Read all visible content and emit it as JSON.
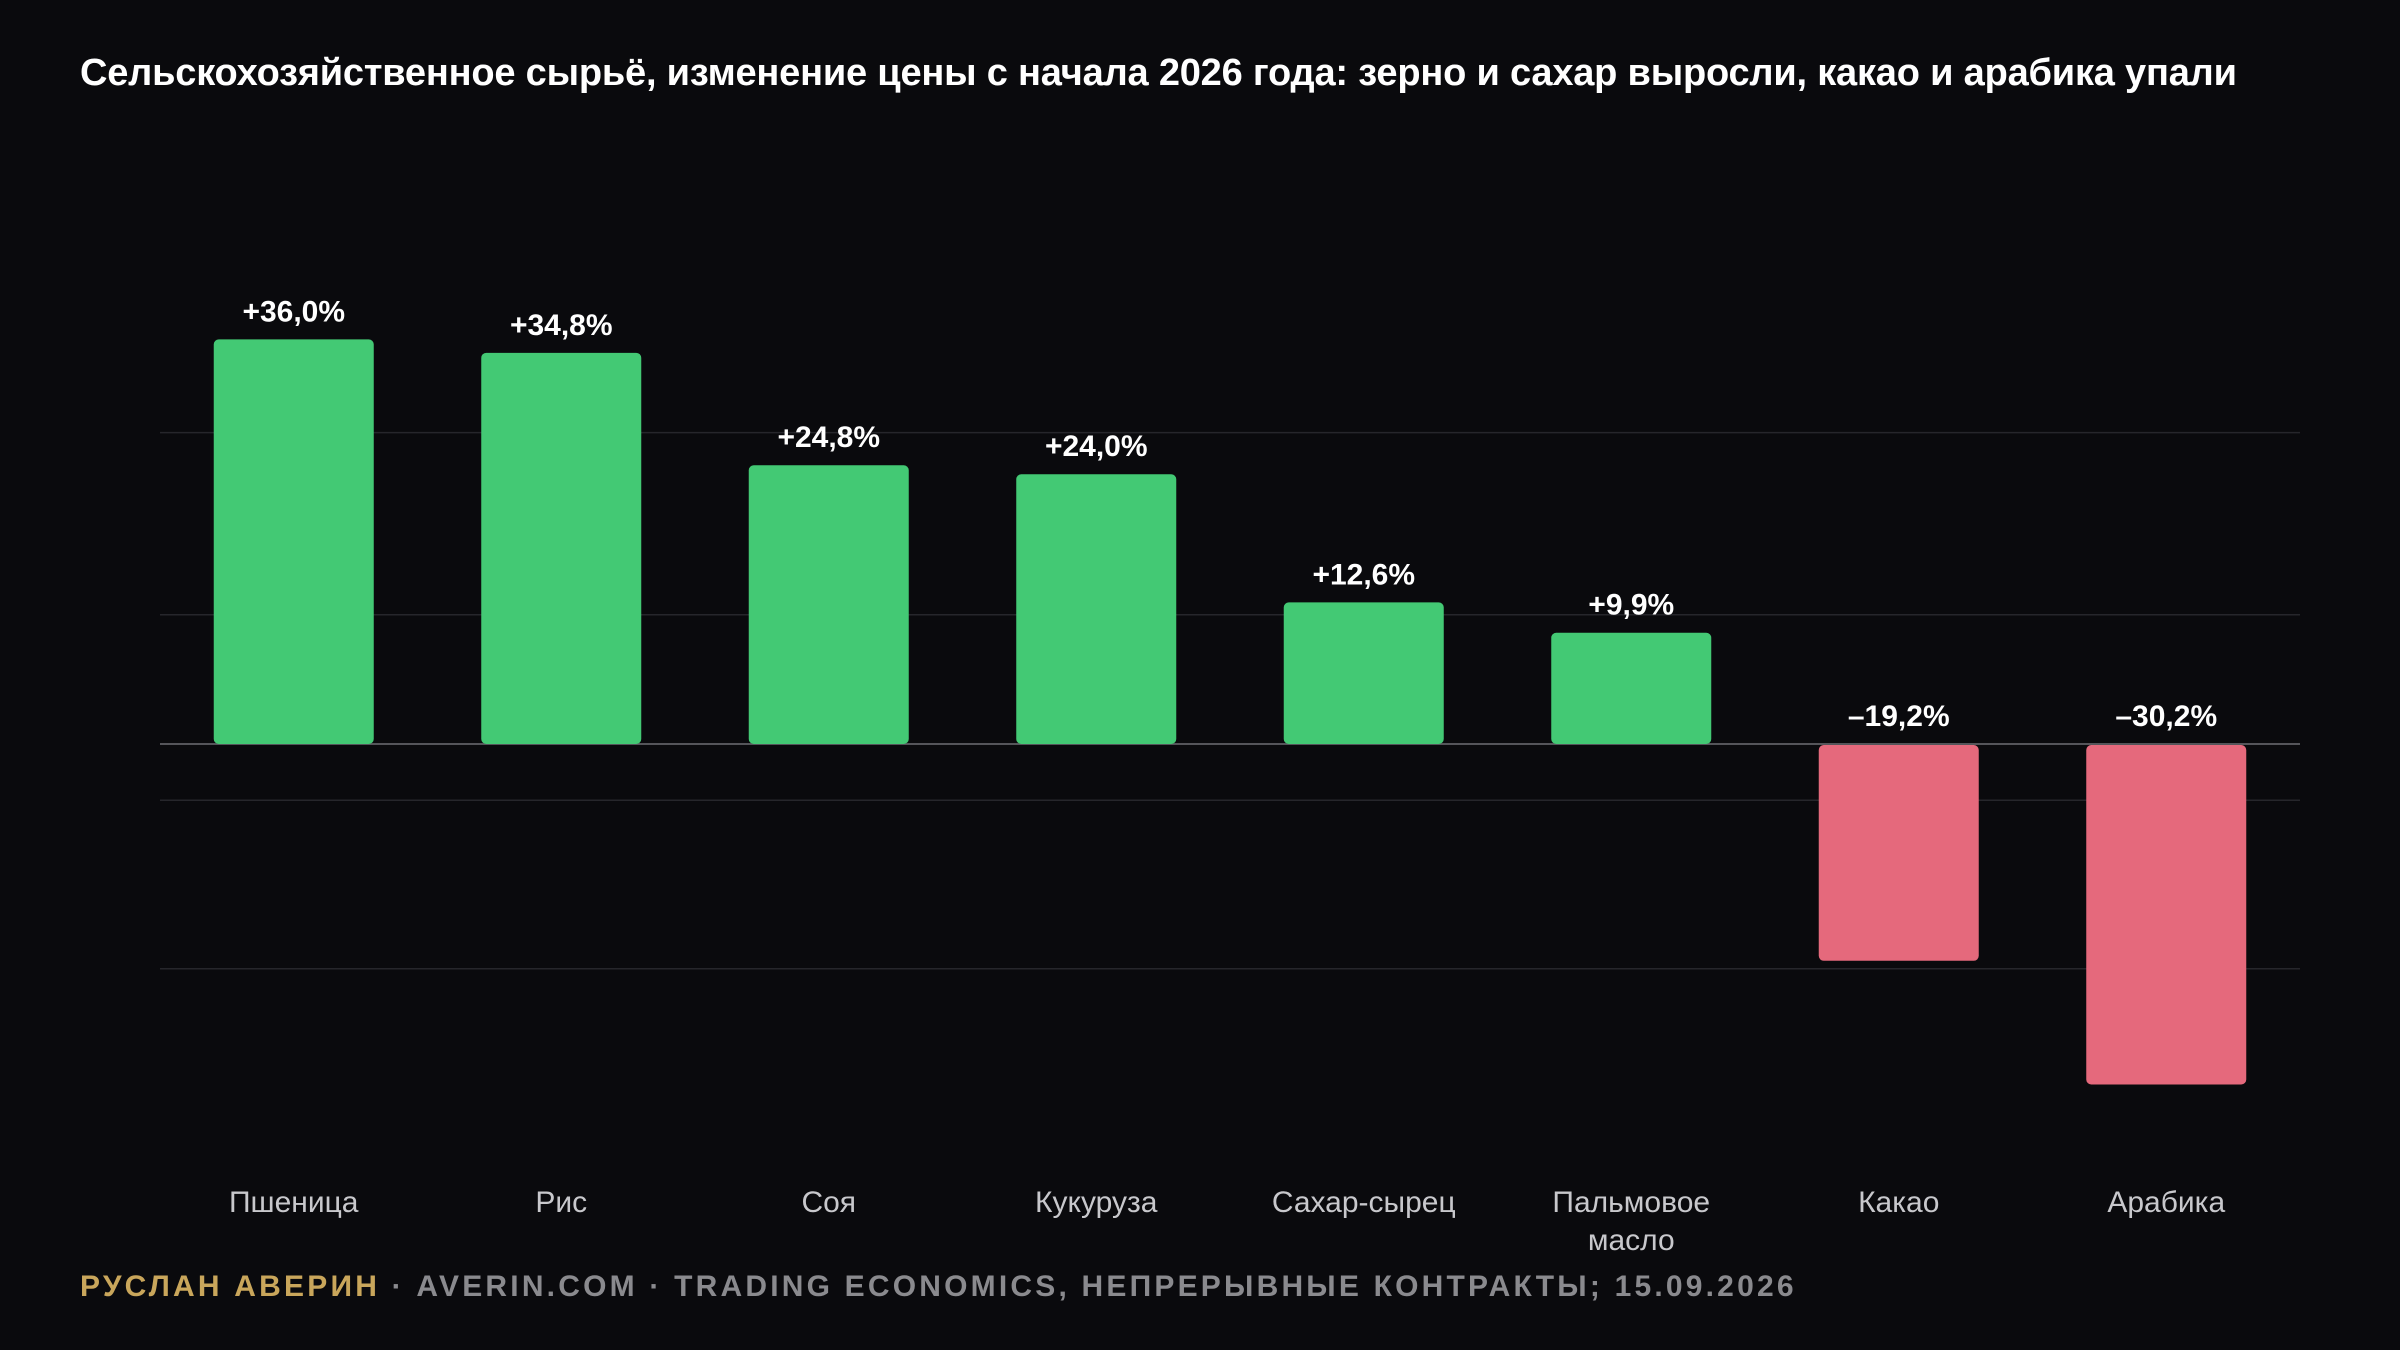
{
  "title": "Сельскохозяйственное сырьё, изменение цены с начала 2026 года: зерно и сахар выросли, какао и арабика упали",
  "footer": {
    "author": "РУСЛАН АВЕРИН",
    "separator": " · ",
    "source": "AVERIN.COM · TRADING ECONOMICS, НЕПРЕРЫВНЫЕ КОНТРАКТЫ; 15.09.2026"
  },
  "colors": {
    "positive": "#43c974",
    "negative": "#e5697c",
    "background": "#0a0a0d",
    "gridline": "#26262b",
    "zeroline": "#55555a",
    "category_label": "#c8c8cc",
    "author": "#c9a65b"
  },
  "chart_data": {
    "type": "bar",
    "categories": [
      "Пшеница",
      "Рис",
      "Соя",
      "Кукуруза",
      "Сахар-сырец",
      "Пальмовое\nмасло",
      "Какао",
      "Арабика"
    ],
    "values": [
      36.0,
      34.8,
      24.8,
      24.0,
      12.6,
      9.9,
      -19.2,
      -30.2
    ],
    "labels": [
      "+36,0%",
      "+34,8%",
      "+24,8%",
      "+24,0%",
      "+12,6%",
      "+9,9%",
      "–19,2%",
      "–30,2%"
    ],
    "ylim": [
      -30.2,
      36.0
    ],
    "grid": true,
    "gridlines": [
      -20,
      -5,
      11.5,
      27.7
    ],
    "xlabel": "",
    "ylabel": ""
  }
}
